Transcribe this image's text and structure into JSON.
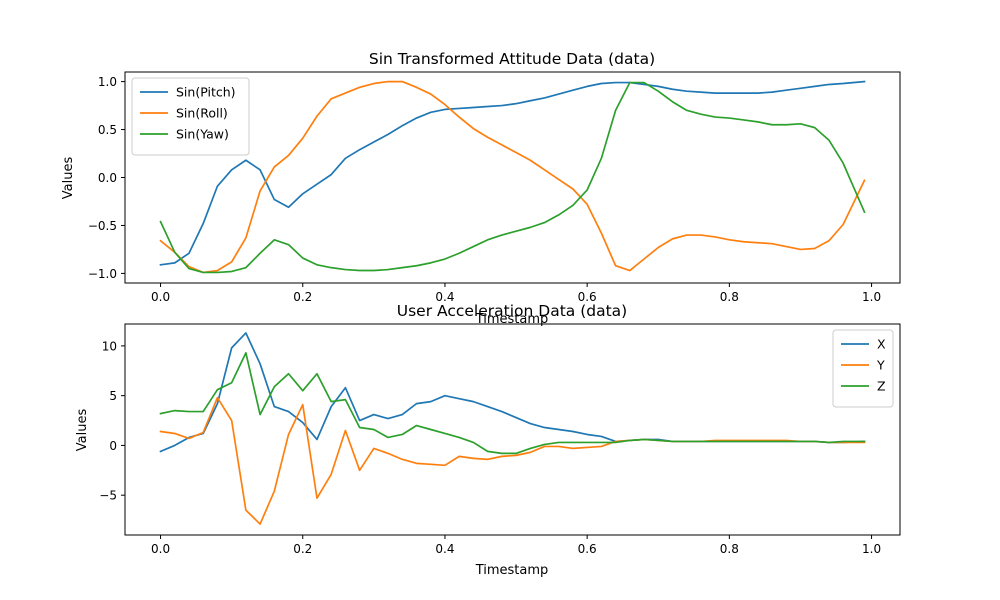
{
  "chart_data": [
    {
      "type": "line",
      "title": "Sin Transformed Attitude Data (data)",
      "xlabel": "Timestamp",
      "ylabel": "Values",
      "xlim": [
        -0.05,
        1.04
      ],
      "ylim": [
        -1.1,
        1.1
      ],
      "xticks": [
        0.0,
        0.2,
        0.4,
        0.6,
        0.8,
        1.0
      ],
      "xtick_labels": [
        "0.0",
        "0.2",
        "0.4",
        "0.6",
        "0.8",
        "1.0"
      ],
      "yticks": [
        -1.0,
        -0.5,
        0.0,
        0.5,
        1.0
      ],
      "ytick_labels": [
        "−1.0",
        "−0.5",
        "0.0",
        "0.5",
        "1.0"
      ],
      "legend": "top-left",
      "x": [
        0.0,
        0.02,
        0.04,
        0.06,
        0.08,
        0.1,
        0.12,
        0.14,
        0.16,
        0.18,
        0.2,
        0.22,
        0.24,
        0.26,
        0.28,
        0.3,
        0.32,
        0.34,
        0.36,
        0.38,
        0.4,
        0.42,
        0.44,
        0.46,
        0.48,
        0.5,
        0.52,
        0.54,
        0.56,
        0.58,
        0.6,
        0.62,
        0.64,
        0.66,
        0.68,
        0.7,
        0.72,
        0.74,
        0.76,
        0.78,
        0.8,
        0.82,
        0.84,
        0.86,
        0.88,
        0.9,
        0.92,
        0.94,
        0.96,
        0.99
      ],
      "series": [
        {
          "name": "Sin(Pitch)",
          "color": "#1f77b4",
          "values": [
            -0.91,
            -0.89,
            -0.79,
            -0.48,
            -0.09,
            0.08,
            0.18,
            0.08,
            -0.23,
            -0.31,
            -0.17,
            -0.07,
            0.03,
            0.2,
            0.29,
            0.37,
            0.45,
            0.54,
            0.62,
            0.68,
            0.71,
            0.72,
            0.73,
            0.74,
            0.75,
            0.77,
            0.8,
            0.83,
            0.87,
            0.91,
            0.95,
            0.98,
            0.99,
            0.99,
            0.97,
            0.95,
            0.92,
            0.9,
            0.89,
            0.88,
            0.88,
            0.88,
            0.88,
            0.89,
            0.91,
            0.93,
            0.95,
            0.97,
            0.98,
            1.0
          ]
        },
        {
          "name": "Sin(Roll)",
          "color": "#ff7f0e",
          "values": [
            -0.66,
            -0.78,
            -0.93,
            -0.99,
            -0.97,
            -0.88,
            -0.63,
            -0.14,
            0.11,
            0.23,
            0.41,
            0.64,
            0.82,
            0.88,
            0.94,
            0.98,
            1.0,
            1.0,
            0.94,
            0.87,
            0.76,
            0.63,
            0.51,
            0.42,
            0.34,
            0.26,
            0.18,
            0.08,
            -0.02,
            -0.12,
            -0.28,
            -0.58,
            -0.92,
            -0.97,
            -0.85,
            -0.73,
            -0.64,
            -0.6,
            -0.6,
            -0.62,
            -0.65,
            -0.67,
            -0.68,
            -0.69,
            -0.72,
            -0.75,
            -0.74,
            -0.66,
            -0.49,
            -0.03
          ]
        },
        {
          "name": "Sin(Yaw)",
          "color": "#2ca02c",
          "values": [
            -0.46,
            -0.78,
            -0.95,
            -0.99,
            -0.99,
            -0.98,
            -0.94,
            -0.79,
            -0.65,
            -0.7,
            -0.84,
            -0.91,
            -0.94,
            -0.96,
            -0.97,
            -0.97,
            -0.96,
            -0.94,
            -0.92,
            -0.89,
            -0.85,
            -0.79,
            -0.72,
            -0.65,
            -0.6,
            -0.56,
            -0.52,
            -0.47,
            -0.39,
            -0.29,
            -0.13,
            0.2,
            0.7,
            0.99,
            0.99,
            0.9,
            0.79,
            0.7,
            0.66,
            0.63,
            0.62,
            0.6,
            0.58,
            0.55,
            0.55,
            0.56,
            0.52,
            0.39,
            0.15,
            -0.36
          ]
        }
      ]
    },
    {
      "type": "line",
      "title": "User Acceleration Data (data)",
      "xlabel": "Timestamp",
      "ylabel": "Values",
      "xlim": [
        -0.05,
        1.04
      ],
      "ylim": [
        -9.0,
        12.2
      ],
      "xticks": [
        0.0,
        0.2,
        0.4,
        0.6,
        0.8,
        1.0
      ],
      "xtick_labels": [
        "0.0",
        "0.2",
        "0.4",
        "0.6",
        "0.8",
        "1.0"
      ],
      "yticks": [
        -5,
        0,
        5,
        10
      ],
      "ytick_labels": [
        "−5",
        "0",
        "5",
        "10"
      ],
      "legend": "top-right",
      "x": [
        0.0,
        0.02,
        0.04,
        0.06,
        0.08,
        0.1,
        0.12,
        0.14,
        0.16,
        0.18,
        0.2,
        0.22,
        0.24,
        0.26,
        0.28,
        0.3,
        0.32,
        0.34,
        0.36,
        0.38,
        0.4,
        0.42,
        0.44,
        0.46,
        0.48,
        0.5,
        0.52,
        0.54,
        0.56,
        0.58,
        0.6,
        0.62,
        0.64,
        0.66,
        0.68,
        0.7,
        0.72,
        0.74,
        0.76,
        0.78,
        0.8,
        0.82,
        0.84,
        0.86,
        0.88,
        0.9,
        0.92,
        0.94,
        0.96,
        0.99
      ],
      "series": [
        {
          "name": "X",
          "color": "#1f77b4",
          "values": [
            -0.6,
            0.0,
            0.8,
            1.2,
            4.2,
            9.8,
            11.3,
            8.2,
            3.9,
            3.4,
            2.3,
            0.6,
            3.9,
            5.8,
            2.5,
            3.1,
            2.7,
            3.1,
            4.2,
            4.4,
            5.0,
            4.7,
            4.4,
            3.9,
            3.4,
            2.8,
            2.2,
            1.8,
            1.6,
            1.4,
            1.1,
            0.9,
            0.4,
            0.5,
            0.6,
            0.6,
            0.4,
            0.4,
            0.4,
            0.4,
            0.4,
            0.4,
            0.4,
            0.4,
            0.4,
            0.4,
            0.4,
            0.3,
            0.3,
            0.4
          ]
        },
        {
          "name": "Y",
          "color": "#ff7f0e",
          "values": [
            1.4,
            1.2,
            0.7,
            1.3,
            4.8,
            2.5,
            -6.5,
            -7.9,
            -4.6,
            1.1,
            4.1,
            -5.3,
            -2.9,
            1.5,
            -2.5,
            -0.3,
            -0.8,
            -1.4,
            -1.8,
            -1.9,
            -2.0,
            -1.1,
            -1.3,
            -1.4,
            -1.1,
            -1.0,
            -0.7,
            -0.1,
            -0.1,
            -0.3,
            -0.2,
            -0.1,
            0.4,
            0.5,
            0.6,
            0.5,
            0.4,
            0.4,
            0.4,
            0.5,
            0.5,
            0.5,
            0.5,
            0.5,
            0.5,
            0.4,
            0.4,
            0.3,
            0.3,
            0.3
          ]
        },
        {
          "name": "Z",
          "color": "#2ca02c",
          "values": [
            3.2,
            3.5,
            3.4,
            3.4,
            5.6,
            6.3,
            9.3,
            3.1,
            5.9,
            7.2,
            5.5,
            7.2,
            4.4,
            4.6,
            1.8,
            1.6,
            0.8,
            1.1,
            2.0,
            1.6,
            1.2,
            0.8,
            0.3,
            -0.6,
            -0.8,
            -0.8,
            -0.3,
            0.1,
            0.3,
            0.3,
            0.3,
            0.3,
            0.3,
            0.5,
            0.6,
            0.5,
            0.4,
            0.4,
            0.4,
            0.4,
            0.4,
            0.4,
            0.4,
            0.4,
            0.4,
            0.4,
            0.4,
            0.3,
            0.4,
            0.4
          ]
        }
      ]
    }
  ]
}
